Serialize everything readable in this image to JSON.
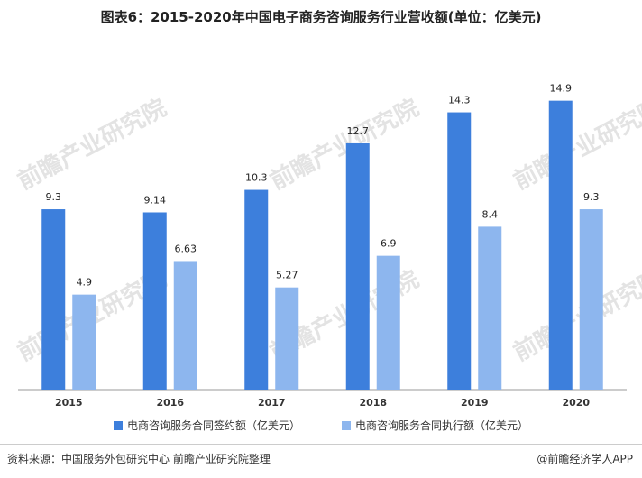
{
  "title": "图表6：2015-2020年中国电子商务咨询服务行业营收额(单位：亿美元)",
  "colors": {
    "series1": "#3d7fdc",
    "series2": "#8db6ee",
    "axis": "#999999"
  },
  "legend": {
    "placement": "bottom"
  },
  "source": "资料来源：中国服务外包研究中心 前瞻产业研究院整理",
  "brand": "@前瞻经济学人APP",
  "watermark_text": "前瞻产业研究院",
  "chart_data": {
    "type": "bar",
    "categories": [
      "2015",
      "2016",
      "2017",
      "2018",
      "2019",
      "2020"
    ],
    "series": [
      {
        "name": "电商咨询服务合同签约额（亿美元）",
        "values": [
          9.3,
          9.14,
          10.3,
          12.7,
          14.3,
          14.9
        ]
      },
      {
        "name": "电商咨询服务合同执行额（亿美元）",
        "values": [
          4.9,
          6.63,
          5.27,
          6.9,
          8.4,
          9.3
        ]
      }
    ],
    "data_labels": [
      [
        "9.3",
        "9.14",
        "10.3",
        "12.7",
        "14.3",
        "14.9"
      ],
      [
        "4.9",
        "6.63",
        "5.27",
        "6.9",
        "8.4",
        "9.3"
      ]
    ],
    "ylim": [
      0,
      16
    ],
    "grid": false
  }
}
